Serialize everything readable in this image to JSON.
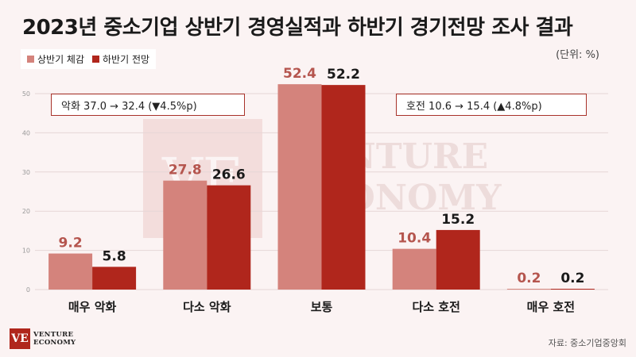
{
  "title": "2023년 중소기업 상반기 경영실적과 하반기 경기전망 조사 결과",
  "unit": "(단위: %)",
  "source": "자료: 중소기업중앙회",
  "logo": {
    "mark": "VE",
    "line1": "VENTURE",
    "line2": "ECONOMY"
  },
  "watermark": {
    "mark": "VE",
    "line1": "VENTURE",
    "line2": "ECONOMY"
  },
  "callouts": {
    "left": "악화 37.0 → 32.4 (▼4.5%p)",
    "right": "호전 10.6 → 15.4 (▲4.8%p)"
  },
  "colors": {
    "series1": "#d4837c",
    "series2": "#b0261c",
    "series1_label": "#b5554e",
    "series2_label": "#1a1a1a"
  },
  "chart_data": {
    "type": "bar",
    "categories": [
      "매우 악화",
      "다소 악화",
      "보통",
      "다소 호전",
      "매우 호전"
    ],
    "series": [
      {
        "name": "상반기 체감",
        "values": [
          9.2,
          27.8,
          52.4,
          10.4,
          0.2
        ]
      },
      {
        "name": "하반기 전망",
        "values": [
          5.8,
          26.6,
          52.2,
          15.2,
          0.2
        ]
      }
    ],
    "ylim": [
      0,
      50
    ],
    "yticks": [
      0,
      10,
      20,
      30,
      40,
      50
    ],
    "grid": true,
    "legend": "top-left"
  }
}
